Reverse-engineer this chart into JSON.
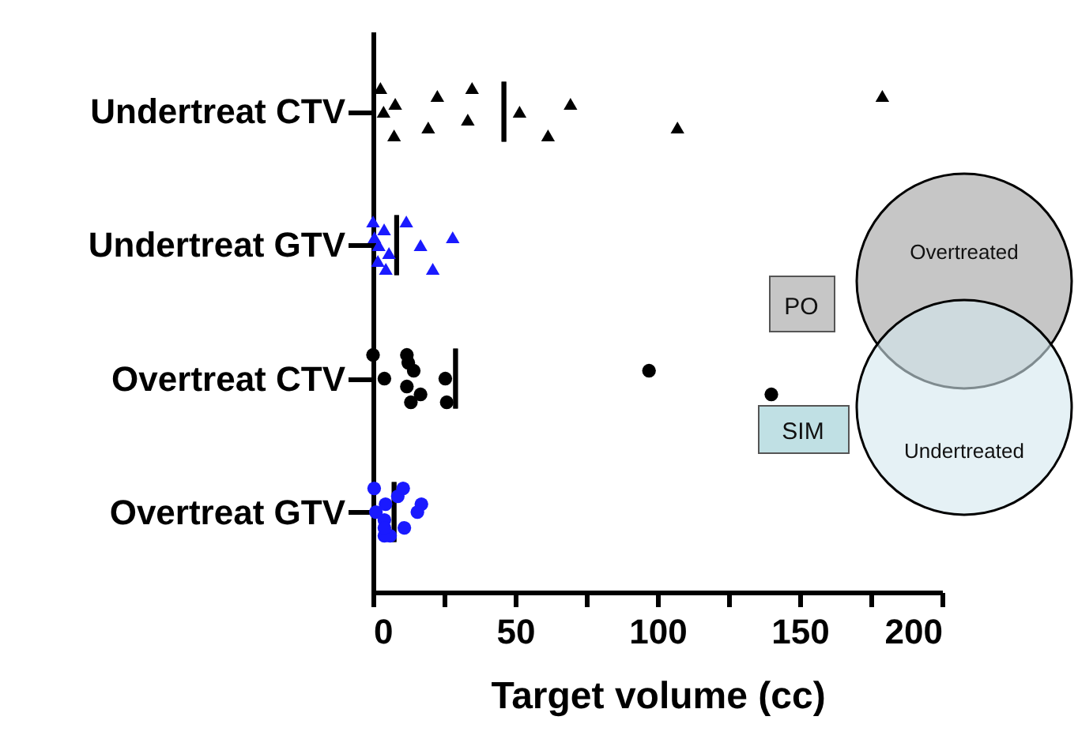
{
  "chart_data": {
    "type": "scatter",
    "orientation": "horizontal",
    "xlabel": "Target volume (cc)",
    "categories": [
      "Undertreat CTV",
      "Undertreat GTV",
      "Overtreat CTV",
      "Overtreat GTV"
    ],
    "xlim": [
      0,
      200
    ],
    "xticks": [
      0,
      {
        "value": 25,
        "label": null
      },
      50,
      {
        "value": 75,
        "label": null
      },
      100,
      {
        "value": 125,
        "label": null
      },
      150,
      {
        "value": 175,
        "label": null
      },
      200
    ],
    "series": [
      {
        "type": "scatter",
        "marker": "triangle",
        "color": "#000000",
        "x": [
          "Undertreat CTV",
          "Undertreat CTV",
          "Undertreat CTV",
          "Undertreat CTV",
          "Undertreat CTV",
          "Undertreat CTV",
          "Undertreat CTV",
          "Undertreat CTV",
          "Undertreat CTV",
          "Undertreat CTV",
          "Undertreat CTV",
          "Undertreat CTV",
          "Undertreat CTV"
        ],
        "values": [
          2.6,
          3.7,
          7.4,
          7.8,
          19.4,
          22.6,
          33.3,
          34.8,
          51.5,
          61.5,
          69.4,
          107,
          179
        ]
      },
      {
        "type": "scatter",
        "marker": "triangle",
        "color": "#1a1aff",
        "x": [
          "Undertreat GTV",
          "Undertreat GTV",
          "Undertreat GTV",
          "Undertreat GTV",
          "Undertreat GTV",
          "Undertreat GTV",
          "Undertreat GTV",
          "Undertreat GTV",
          "Undertreat GTV",
          "Undertreat GTV",
          "Undertreat GTV"
        ],
        "values": [
          0,
          2,
          4.5,
          0.5,
          1.7,
          3.9,
          5.6,
          11.7,
          16.7,
          21,
          28
        ]
      },
      {
        "type": "scatter",
        "marker": "circle",
        "color": "#000000",
        "x": [
          "Overtreat CTV",
          "Overtreat CTV",
          "Overtreat CTV",
          "Overtreat CTV",
          "Overtreat CTV",
          "Overtreat CTV",
          "Overtreat CTV",
          "Overtreat CTV",
          "Overtreat CTV",
          "Overtreat CTV",
          "Overtreat CTV",
          "Overtreat CTV"
        ],
        "values": [
          0,
          4,
          13.3,
          14.3,
          16.7,
          12.4,
          11.9,
          11.9,
          25.4,
          25.9,
          97,
          140
        ]
      },
      {
        "type": "scatter",
        "marker": "circle",
        "color": "#1a1aff",
        "x": [
          "Overtreat GTV",
          "Overtreat GTV",
          "Overtreat GTV",
          "Overtreat GTV",
          "Overtreat GTV",
          "Overtreat GTV",
          "Overtreat GTV",
          "Overtreat GTV",
          "Overtreat GTV",
          "Overtreat GTV",
          "Overtreat GTV",
          "Overtreat GTV"
        ],
        "values": [
          0.4,
          1,
          6,
          17,
          11,
          8.7,
          4,
          10.6,
          15.6,
          4,
          4.4,
          4
        ]
      },
      {
        "type": "box",
        "color": "#000000",
        "boxes": [
          {
            "low": 46,
            "q1": 46,
            "median": 46,
            "q3": 46,
            "high": 46
          },
          {
            "low": 8.3,
            "q1": 8.3,
            "median": 8.3,
            "q3": 8.3,
            "high": 8.3
          },
          {
            "low": 29,
            "q1": 29,
            "median": 29,
            "q3": 29,
            "high": 29
          },
          {
            "low": 7.4,
            "q1": 7.4,
            "median": 7.4,
            "q3": 7.4,
            "high": 7.4
          }
        ]
      }
    ],
    "annotations": [
      "PO",
      "SIM",
      "Overtreated",
      "Undertreated"
    ],
    "grid": false
  }
}
